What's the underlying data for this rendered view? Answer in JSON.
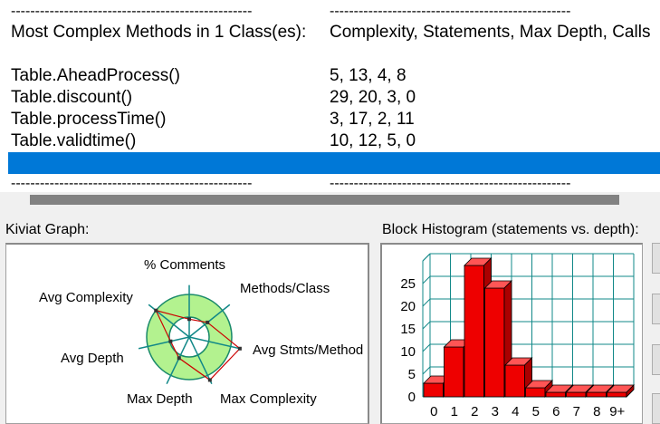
{
  "report": {
    "separator_left": "--------------------------------------------------",
    "separator_right": "--------------------------------------------------",
    "header_left": "Most Complex Methods in 1 Class(es):",
    "header_right": "Complexity, Statements, Max Depth, Calls",
    "methods": [
      {
        "name": "Table.AheadProcess()",
        "values": "5, 13, 4, 8"
      },
      {
        "name": "Table.discount()",
        "values": "29, 20, 3, 0"
      },
      {
        "name": "Table.processTime()",
        "values": "3, 17, 2, 11"
      },
      {
        "name": "Table.validtime()",
        "values": "10, 12, 5, 0"
      }
    ]
  },
  "kiviat": {
    "title": "Kiviat Graph:",
    "axes": [
      "% Comments",
      "Methods/Class",
      "Avg Stmts/Method",
      "Max Complexity",
      "Max Depth",
      "Avg Depth",
      "Avg Complexity"
    ],
    "values": [
      0.42,
      0.55,
      1.22,
      1.12,
      0.55,
      0.45,
      1.0
    ],
    "colors": {
      "ring_fill": "#b3f28f",
      "ring_stroke": "#1a8a6a",
      "axis": "#118888",
      "polygon": "#cc0000"
    }
  },
  "histogram": {
    "title": "Block Histogram (statements vs. depth):",
    "chart_data": {
      "type": "bar",
      "categories": [
        "0",
        "1",
        "2",
        "3",
        "4",
        "5",
        "6",
        "7",
        "8",
        "9+"
      ],
      "values": [
        3,
        11,
        29,
        24,
        7,
        2,
        1,
        1,
        1,
        1
      ],
      "y_ticks": [
        "0",
        "5",
        "10",
        "15",
        "20",
        "25"
      ],
      "ylim": [
        0,
        30
      ],
      "grid": true,
      "bar_color": "#ee0000",
      "grid_color": "#118888"
    }
  }
}
